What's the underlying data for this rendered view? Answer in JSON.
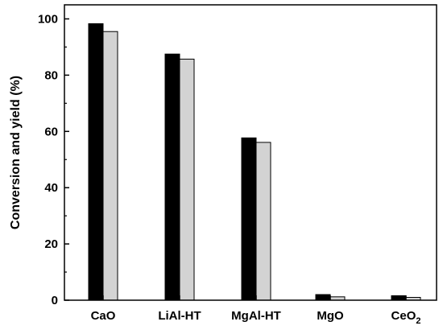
{
  "chart_data": {
    "type": "bar",
    "title": "",
    "xlabel": "",
    "ylabel": "Conversion and yield (%)",
    "ylim": [
      0,
      105
    ],
    "yticks": [
      0,
      20,
      40,
      60,
      80,
      100
    ],
    "grid": false,
    "categories": [
      {
        "main": "CaO",
        "sub": ""
      },
      {
        "main": "LiAl-HT",
        "sub": ""
      },
      {
        "main": "MgAl-HT",
        "sub": ""
      },
      {
        "main": "MgO",
        "sub": ""
      },
      {
        "main": "CeO",
        "sub": "2"
      }
    ],
    "series": [
      {
        "color": "#000000",
        "values": [
          98.3,
          87.5,
          57.7,
          2.0,
          1.6
        ]
      },
      {
        "color": "#d3d3d3",
        "values": [
          95.5,
          85.7,
          56.1,
          1.2,
          1.0
        ]
      }
    ]
  }
}
